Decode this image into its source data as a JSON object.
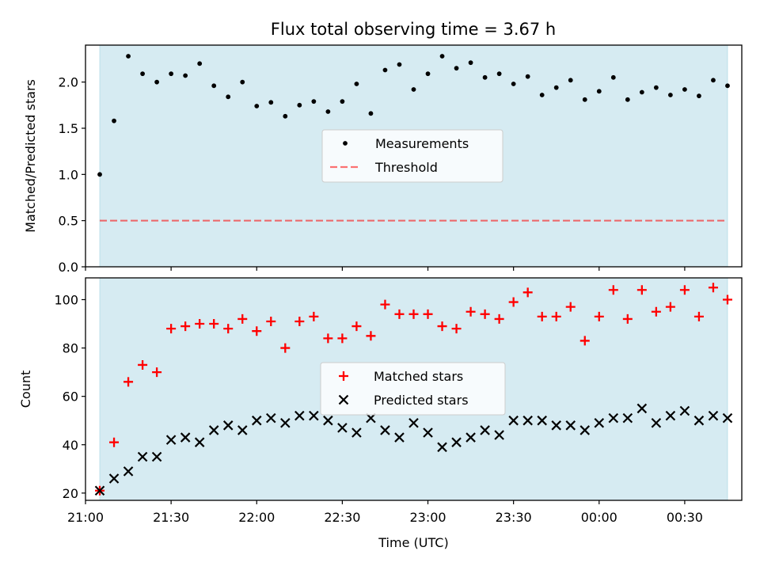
{
  "figure": {
    "title": "Flux total observing time = 3.67 h"
  },
  "colors": {
    "shade": "#add8e6",
    "measurement": "#000000",
    "threshold": "#ff0000",
    "matched": "#ff0000",
    "predicted": "#000000"
  },
  "chart_data": [
    {
      "type": "scatter",
      "panel": "top",
      "title": "Flux total observing time = 3.67 h",
      "xlabel": "",
      "ylabel": "Matched/Predicted stars",
      "xlim": [
        "21:00",
        "00:50"
      ],
      "ylim": [
        0,
        2.4
      ],
      "yticks": [
        0.0,
        0.5,
        1.0,
        1.5,
        2.0
      ],
      "ytick_labels": [
        "0.0",
        "0.5",
        "1.0",
        "1.5",
        "2.0"
      ],
      "xticks": [
        "21:00",
        "21:30",
        "22:00",
        "22:30",
        "23:00",
        "23:30",
        "00:00",
        "00:30"
      ],
      "grid": false,
      "legend_position": "center",
      "shaded_span": [
        "21:05",
        "00:45"
      ],
      "threshold": {
        "name": "Threshold",
        "value": 0.5,
        "style": "dashed"
      },
      "series": [
        {
          "name": "Measurements",
          "x": [
            "21:05",
            "21:10",
            "21:15",
            "21:20",
            "21:25",
            "21:30",
            "21:35",
            "21:40",
            "21:45",
            "21:50",
            "21:55",
            "22:00",
            "22:05",
            "22:10",
            "22:15",
            "22:20",
            "22:25",
            "22:30",
            "22:35",
            "22:40",
            "22:45",
            "22:50",
            "22:55",
            "23:00",
            "23:05",
            "23:10",
            "23:15",
            "23:20",
            "23:25",
            "23:30",
            "23:35",
            "23:40",
            "23:45",
            "23:50",
            "23:55",
            "00:00",
            "00:05",
            "00:10",
            "00:15",
            "00:20",
            "00:25",
            "00:30",
            "00:35",
            "00:40",
            "00:45"
          ],
          "y": [
            1.0,
            1.58,
            2.28,
            2.09,
            2.0,
            2.09,
            2.07,
            2.2,
            1.96,
            1.84,
            2.0,
            1.74,
            1.78,
            1.63,
            1.75,
            1.79,
            1.68,
            1.79,
            1.98,
            1.66,
            2.13,
            2.19,
            1.92,
            2.09,
            2.28,
            2.15,
            2.21,
            2.05,
            2.09,
            1.98,
            2.06,
            1.86,
            1.94,
            2.02,
            1.81,
            1.9,
            2.05,
            1.81,
            1.89,
            1.94,
            1.86,
            1.92,
            1.85,
            2.02,
            1.96
          ]
        }
      ]
    },
    {
      "type": "scatter",
      "panel": "bottom",
      "xlabel": "Time (UTC)",
      "ylabel": "Count",
      "xlim": [
        "21:00",
        "00:50"
      ],
      "ylim": [
        17,
        109
      ],
      "yticks": [
        20,
        40,
        60,
        80,
        100
      ],
      "ytick_labels": [
        "20",
        "40",
        "60",
        "80",
        "100"
      ],
      "xticks": [
        "21:00",
        "21:30",
        "22:00",
        "22:30",
        "23:00",
        "23:30",
        "00:00",
        "00:30"
      ],
      "xtick_labels": [
        "21:00",
        "21:30",
        "22:00",
        "22:30",
        "23:00",
        "23:30",
        "00:00",
        "00:30"
      ],
      "grid": false,
      "legend_position": "center",
      "shaded_span": [
        "21:05",
        "00:45"
      ],
      "series": [
        {
          "name": "Matched stars",
          "marker": "+",
          "x": [
            "21:05",
            "21:10",
            "21:15",
            "21:20",
            "21:25",
            "21:30",
            "21:35",
            "21:40",
            "21:45",
            "21:50",
            "21:55",
            "22:00",
            "22:05",
            "22:10",
            "22:15",
            "22:20",
            "22:25",
            "22:30",
            "22:35",
            "22:40",
            "22:45",
            "22:50",
            "22:55",
            "23:00",
            "23:05",
            "23:10",
            "23:15",
            "23:20",
            "23:25",
            "23:30",
            "23:35",
            "23:40",
            "23:45",
            "23:50",
            "23:55",
            "00:00",
            "00:05",
            "00:10",
            "00:15",
            "00:20",
            "00:25",
            "00:30",
            "00:35",
            "00:40",
            "00:45"
          ],
          "y": [
            21,
            41,
            66,
            73,
            70,
            88,
            89,
            90,
            90,
            88,
            92,
            87,
            91,
            80,
            91,
            93,
            84,
            84,
            89,
            85,
            98,
            94,
            94,
            94,
            89,
            88,
            95,
            94,
            92,
            99,
            103,
            93,
            93,
            97,
            83,
            93,
            104,
            92,
            104,
            95,
            97,
            104,
            93,
            105,
            100
          ]
        },
        {
          "name": "Predicted stars",
          "marker": "x",
          "x": [
            "21:05",
            "21:10",
            "21:15",
            "21:20",
            "21:25",
            "21:30",
            "21:35",
            "21:40",
            "21:45",
            "21:50",
            "21:55",
            "22:00",
            "22:05",
            "22:10",
            "22:15",
            "22:20",
            "22:25",
            "22:30",
            "22:35",
            "22:40",
            "22:45",
            "22:50",
            "22:55",
            "23:00",
            "23:05",
            "23:10",
            "23:15",
            "23:20",
            "23:25",
            "23:30",
            "23:35",
            "23:40",
            "23:45",
            "23:50",
            "23:55",
            "00:00",
            "00:05",
            "00:10",
            "00:15",
            "00:20",
            "00:25",
            "00:30",
            "00:35",
            "00:40",
            "00:45"
          ],
          "y": [
            21,
            26,
            29,
            35,
            35,
            42,
            43,
            41,
            46,
            48,
            46,
            50,
            51,
            49,
            52,
            52,
            50,
            47,
            45,
            51,
            46,
            43,
            49,
            45,
            39,
            41,
            43,
            46,
            44,
            50,
            50,
            50,
            48,
            48,
            46,
            49,
            51,
            51,
            55,
            49,
            52,
            54,
            50,
            52,
            51
          ]
        }
      ]
    }
  ]
}
